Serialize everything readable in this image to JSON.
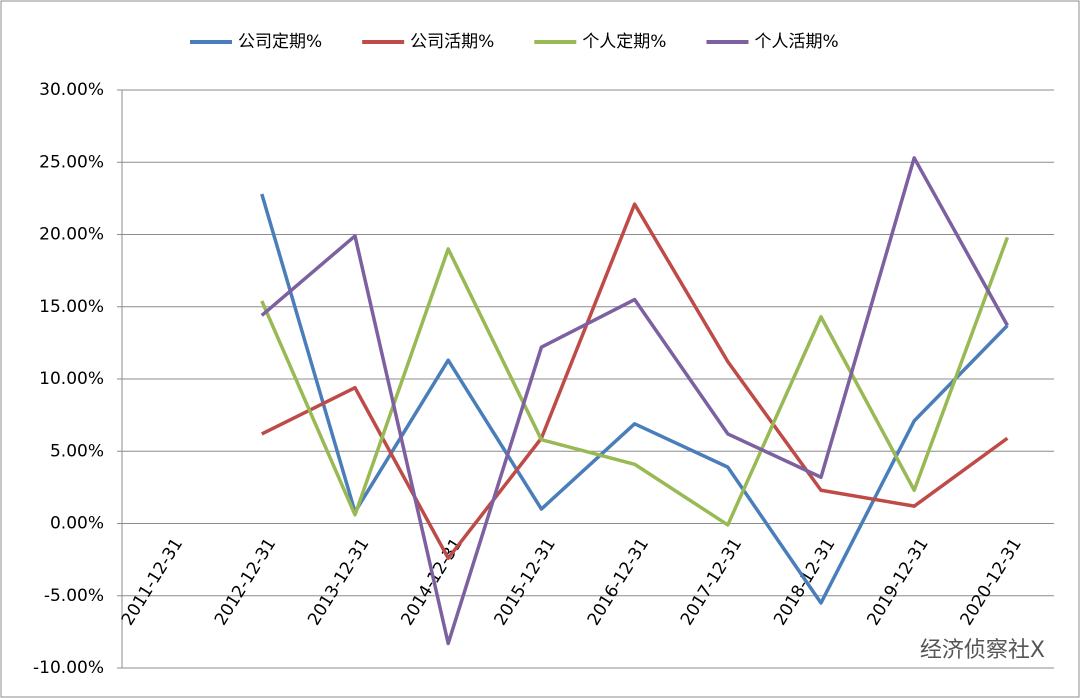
{
  "chart_data": {
    "type": "line",
    "categories": [
      "2011-12-31",
      "2012-12-31",
      "2013-12-31",
      "2014-12-31",
      "2015-12-31",
      "2016-12-31",
      "2017-12-31",
      "2018-12-31",
      "2019-12-31",
      "2020-12-31"
    ],
    "series": [
      {
        "name": "公司定期%",
        "color": "#4a7ebb",
        "values": [
          null,
          22.8,
          0.8,
          11.3,
          1.0,
          6.9,
          3.9,
          -5.5,
          7.1,
          13.7
        ]
      },
      {
        "name": "公司活期%",
        "color": "#be4b48",
        "values": [
          null,
          6.2,
          9.4,
          -2.4,
          5.9,
          22.1,
          11.2,
          2.3,
          1.2,
          5.9
        ]
      },
      {
        "name": "个人定期%",
        "color": "#98b954",
        "values": [
          null,
          15.4,
          0.6,
          19.0,
          5.8,
          4.1,
          -0.1,
          14.3,
          2.3,
          19.8
        ]
      },
      {
        "name": "个人活期%",
        "color": "#7d60a0",
        "values": [
          null,
          14.4,
          19.9,
          -8.3,
          12.2,
          15.5,
          6.2,
          3.2,
          25.3,
          13.7
        ]
      }
    ],
    "ylim": [
      -10,
      30
    ],
    "yticks": [
      {
        "value": -10,
        "label": "-10.00%"
      },
      {
        "value": -5,
        "label": "-5.00%"
      },
      {
        "value": 0,
        "label": "0.00%"
      },
      {
        "value": 5,
        "label": "5.00%"
      },
      {
        "value": 10,
        "label": "10.00%"
      },
      {
        "value": 15,
        "label": "15.00%"
      },
      {
        "value": 20,
        "label": "20.00%"
      },
      {
        "value": 25,
        "label": "25.00%"
      },
      {
        "value": 30,
        "label": "30.00%"
      }
    ],
    "grid": true,
    "legend": "top",
    "annotation": "经济侦察社X"
  }
}
